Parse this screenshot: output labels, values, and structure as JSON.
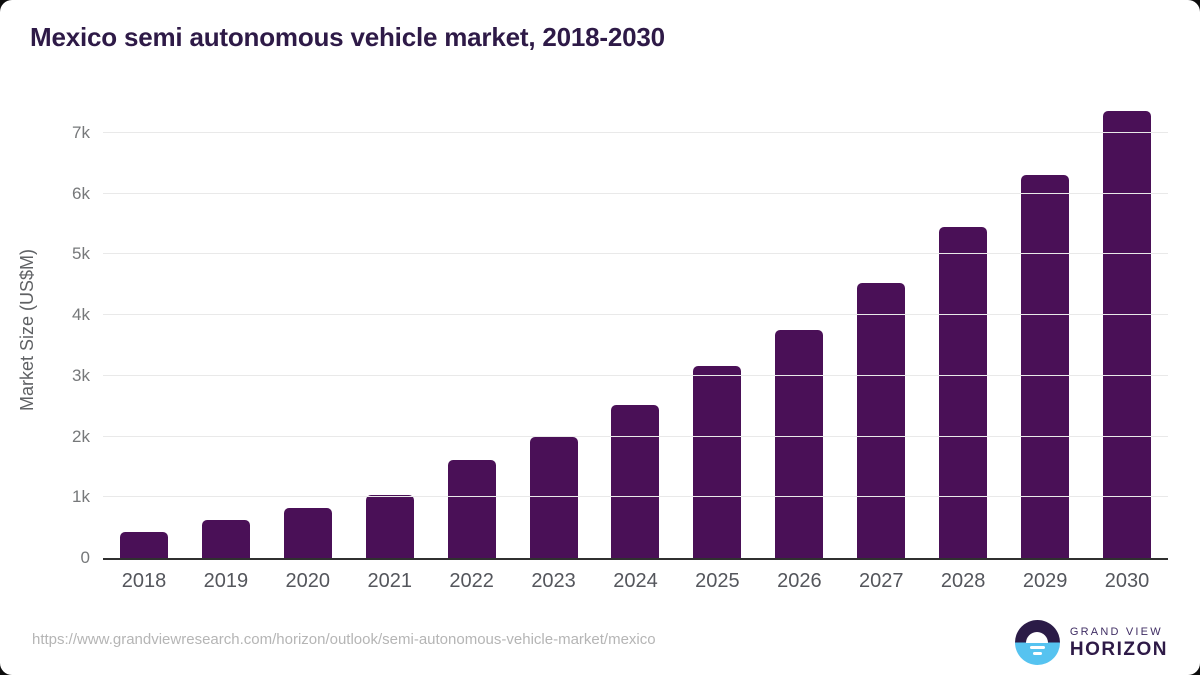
{
  "title": "Mexico semi autonomous vehicle market, 2018-2030",
  "chart_data": {
    "type": "bar",
    "title": "Mexico semi autonomous vehicle market, 2018-2030",
    "categories": [
      "2018",
      "2019",
      "2020",
      "2021",
      "2022",
      "2023",
      "2024",
      "2025",
      "2026",
      "2027",
      "2028",
      "2029",
      "2030"
    ],
    "values": [
      430,
      625,
      830,
      1040,
      1615,
      2000,
      2520,
      3160,
      3760,
      4530,
      5450,
      6310,
      7360
    ],
    "xlabel": "",
    "ylabel": "Market Size (US$M)",
    "ylim": [
      0,
      7500
    ],
    "ytick_step": 1000,
    "ytick_labels": [
      "0",
      "1k",
      "2k",
      "3k",
      "4k",
      "5k",
      "6k",
      "7k"
    ],
    "grid": true,
    "legend": "none",
    "bar_color": "#4a1057"
  },
  "footer": {
    "source_url": "https://www.grandviewresearch.com/horizon/outlook/semi-autonomous-vehicle-market/mexico",
    "logo": {
      "line1": "GRAND VIEW",
      "line2": "HORIZON"
    }
  },
  "colors": {
    "title_text": "#2e1a47",
    "bar": "#4a1057",
    "gridline": "#e9e9e9",
    "axis_line": "#303030",
    "tick_text": "#76787a",
    "xlabel_text": "#54565c",
    "source_text": "#b5b5b5",
    "logo_dark": "#2b1b47",
    "logo_blue": "#56c3f0"
  }
}
